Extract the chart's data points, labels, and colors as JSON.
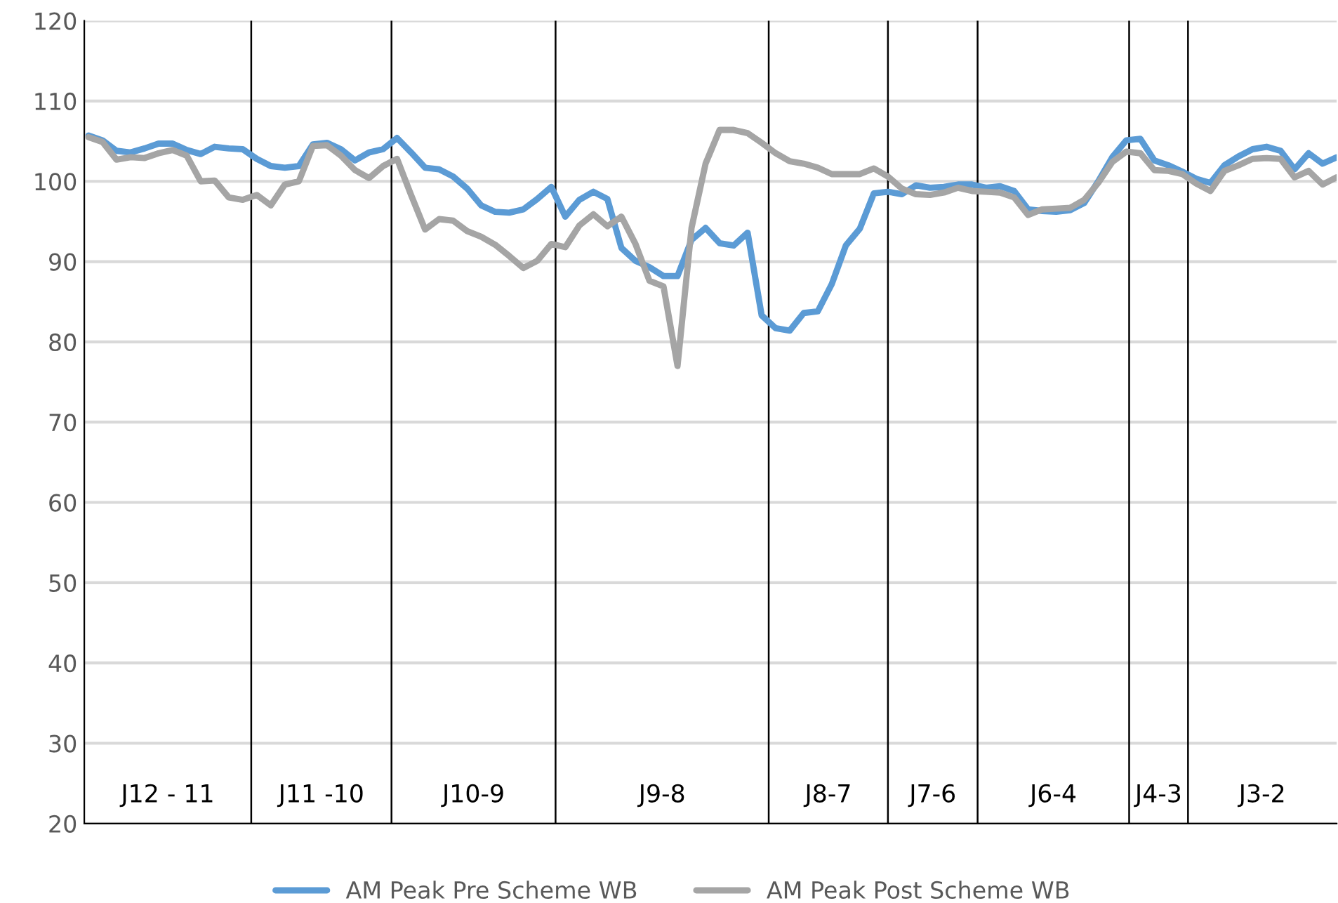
{
  "chart_data": {
    "type": "line",
    "categories": [
      null,
      null,
      null,
      null,
      null,
      null,
      null,
      null,
      null,
      null,
      null,
      null,
      null,
      null,
      null,
      null,
      null,
      null,
      null,
      null,
      null,
      null,
      null,
      null,
      null,
      null,
      null,
      null,
      null,
      null,
      null,
      null,
      null,
      null,
      null,
      null,
      null,
      null,
      null,
      null,
      null,
      null,
      null,
      null,
      null,
      null,
      null,
      null,
      null,
      null,
      null,
      null,
      null,
      null,
      null,
      null,
      null,
      null,
      null,
      null,
      null,
      null,
      null,
      null,
      null,
      null,
      null,
      null,
      null,
      null,
      null,
      null,
      null,
      null,
      null,
      null,
      null,
      null,
      null,
      null,
      null,
      null,
      null,
      null,
      null,
      null,
      null,
      null,
      null,
      null
    ],
    "series": [
      {
        "name": "AM Peak Pre Scheme WB",
        "color": "#5b9bd5",
        "values": [
          105.7,
          105.1,
          103.8,
          103.6,
          104.1,
          104.7,
          104.7,
          103.9,
          103.4,
          104.3,
          104.1,
          104.0,
          102.8,
          101.9,
          101.7,
          101.9,
          104.6,
          104.8,
          104.0,
          102.6,
          103.6,
          104.0,
          105.4,
          103.6,
          101.7,
          101.5,
          100.6,
          99.1,
          97.0,
          96.2,
          96.1,
          96.5,
          97.8,
          99.3,
          95.6,
          97.7,
          98.7,
          97.8,
          91.7,
          90.1,
          89.3,
          88.2,
          88.2,
          92.7,
          94.2,
          92.3,
          92.0,
          93.6,
          83.3,
          81.7,
          81.4,
          83.6,
          83.8,
          87.2,
          92.0,
          94.1,
          98.5,
          98.7,
          98.4,
          99.5,
          99.2,
          99.3,
          99.6,
          99.6,
          99.2,
          99.4,
          98.8,
          96.5,
          96.3,
          96.2,
          96.4,
          97.3,
          100.0,
          103.0,
          105.1,
          105.3,
          102.6,
          102.0,
          101.2,
          100.3,
          99.8,
          102.0,
          103.1,
          104.0,
          104.3,
          103.8,
          101.5,
          103.5,
          102.2,
          103.0
        ]
      },
      {
        "name": "AM Peak Post Scheme WB",
        "color": "#a5a5a5",
        "values": [
          105.5,
          104.9,
          102.7,
          103.0,
          102.9,
          103.5,
          103.9,
          103.2,
          100.0,
          100.1,
          98.0,
          97.7,
          98.3,
          97.0,
          99.6,
          100.0,
          104.4,
          104.5,
          103.2,
          101.4,
          100.4,
          101.9,
          102.8,
          98.3,
          94.0,
          95.3,
          95.1,
          93.8,
          93.1,
          92.1,
          90.7,
          89.2,
          90.1,
          92.2,
          91.8,
          94.5,
          95.9,
          94.4,
          95.6,
          92.2,
          87.6,
          86.9,
          77.0,
          94.2,
          102.2,
          106.4,
          106.4,
          106.0,
          104.8,
          103.5,
          102.5,
          102.2,
          101.7,
          100.9,
          100.9,
          100.9,
          101.6,
          100.6,
          99.1,
          98.4,
          98.3,
          98.6,
          99.2,
          98.8,
          98.7,
          98.6,
          98.0,
          95.8,
          96.5,
          96.6,
          96.7,
          97.7,
          99.8,
          102.4,
          103.7,
          103.5,
          101.4,
          101.3,
          100.9,
          99.7,
          98.8,
          101.3,
          102.0,
          102.8,
          102.9,
          102.8,
          100.5,
          101.3,
          99.6,
          100.5
        ]
      }
    ],
    "ylim": [
      20,
      120
    ],
    "yticks": [
      20,
      30,
      40,
      50,
      60,
      70,
      80,
      90,
      100,
      110,
      120
    ],
    "grid": "y",
    "legend": "bottom",
    "marker": "none",
    "line_style": "solid",
    "annotations": [
      "J12 - 11",
      "J11 -10",
      "J10-9",
      "J9-8",
      "J8-7",
      "J7-6",
      "J6-4",
      "J4-3",
      "J3-2"
    ]
  }
}
